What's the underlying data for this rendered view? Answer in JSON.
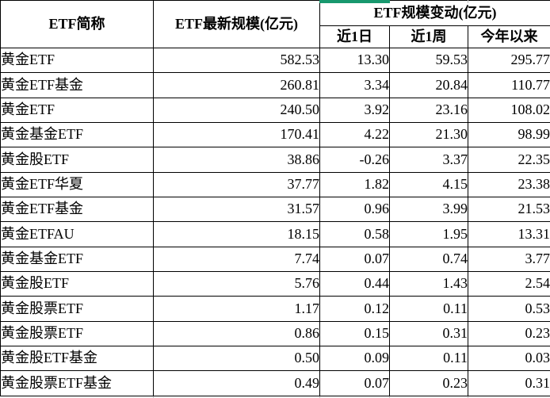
{
  "header": {
    "etf_name": "ETF简称",
    "latest_scale": "ETF最新规模(亿元)",
    "scale_change_group": "ETF规模变动(亿元)",
    "day1": "近1日",
    "week1": "近1周",
    "ytd": "今年以来"
  },
  "rows": [
    {
      "name": "黄金ETF",
      "latest": "582.53",
      "day1": "13.30",
      "week1": "59.53",
      "ytd": "295.77"
    },
    {
      "name": "黄金ETF基金",
      "latest": "260.81",
      "day1": "3.34",
      "week1": "20.84",
      "ytd": "110.77"
    },
    {
      "name": "黄金ETF",
      "latest": "240.50",
      "day1": "3.92",
      "week1": "23.16",
      "ytd": "108.02"
    },
    {
      "name": "黄金基金ETF",
      "latest": "170.41",
      "day1": "4.22",
      "week1": "21.30",
      "ytd": "98.99"
    },
    {
      "name": "黄金股ETF",
      "latest": "38.86",
      "day1": "-0.26",
      "week1": "3.37",
      "ytd": "22.35"
    },
    {
      "name": "黄金ETF华夏",
      "latest": "37.77",
      "day1": "1.82",
      "week1": "4.15",
      "ytd": "23.38"
    },
    {
      "name": "黄金ETF基金",
      "latest": "31.57",
      "day1": "0.96",
      "week1": "3.99",
      "ytd": "21.53"
    },
    {
      "name": "黄金ETFAU",
      "latest": "18.15",
      "day1": "0.58",
      "week1": "1.95",
      "ytd": "13.31"
    },
    {
      "name": "黄金基金ETF",
      "latest": "7.74",
      "day1": "0.07",
      "week1": "0.74",
      "ytd": "3.77"
    },
    {
      "name": "黄金股ETF",
      "latest": "5.76",
      "day1": "0.44",
      "week1": "1.43",
      "ytd": "2.54"
    },
    {
      "name": "黄金股票ETF",
      "latest": "1.17",
      "day1": "0.12",
      "week1": "0.11",
      "ytd": "0.53"
    },
    {
      "name": "黄金股票ETF",
      "latest": "0.86",
      "day1": "0.15",
      "week1": "0.31",
      "ytd": "0.23"
    },
    {
      "name": "黄金股ETF基金",
      "latest": "0.50",
      "day1": "0.09",
      "week1": "0.11",
      "ytd": "0.03"
    },
    {
      "name": "黄金股票ETF基金",
      "latest": "0.49",
      "day1": "0.07",
      "week1": "0.23",
      "ytd": "0.31"
    }
  ],
  "colors": {
    "selection_green": "#18986e",
    "table_border": "#000000",
    "gridline_gray": "#c9c9c9"
  }
}
